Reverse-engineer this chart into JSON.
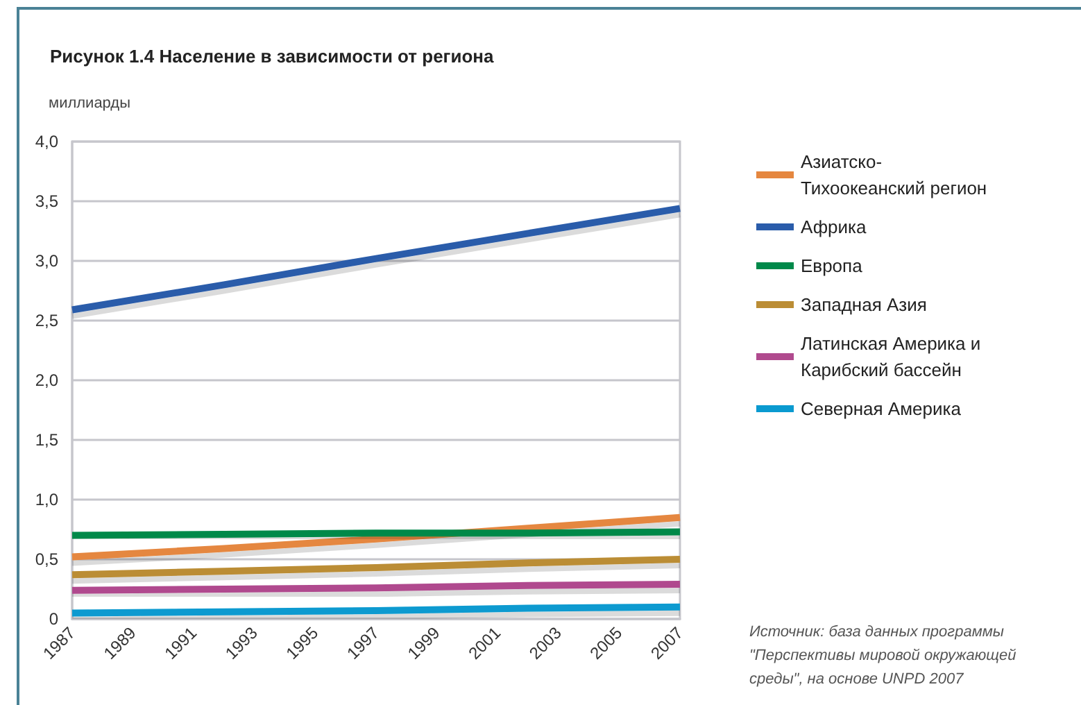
{
  "chart_data": {
    "type": "line",
    "title": "Рисунок 1.4 Население в зависимости от региона",
    "ylabel": "миллиарды",
    "x": [
      1987,
      1992,
      1997,
      2002,
      2007
    ],
    "series": [
      {
        "name": "Азиатско-Тихоокеанский регион",
        "color": "#e5873f",
        "values": [
          0.52,
          0.59,
          0.67,
          0.76,
          0.85
        ]
      },
      {
        "name": "Африка",
        "color": "#2a5caa",
        "values": [
          2.59,
          2.8,
          3.02,
          3.23,
          3.44
        ]
      },
      {
        "name": "Европа",
        "color": "#00894a",
        "values": [
          0.7,
          0.71,
          0.72,
          0.72,
          0.73
        ]
      },
      {
        "name": "Западная Азия",
        "color": "#bb8d35",
        "values": [
          0.37,
          0.4,
          0.43,
          0.47,
          0.5
        ]
      },
      {
        "name": "Латинская Америка и Карибский бассейн",
        "color": "#b04a8e",
        "values": [
          0.24,
          0.25,
          0.26,
          0.28,
          0.29
        ]
      },
      {
        "name": "Северная Америка",
        "color": "#0a9ad0",
        "values": [
          0.05,
          0.06,
          0.07,
          0.09,
          0.1
        ]
      }
    ],
    "xlim": [
      1987,
      2007
    ],
    "xticks": [
      1987,
      1989,
      1991,
      1993,
      1995,
      1997,
      1999,
      2001,
      2003,
      2005,
      2007
    ],
    "ylim": [
      0,
      4
    ],
    "yticks": [
      0,
      {
        "value": 0.5,
        "label": "0,5"
      },
      {
        "value": 1,
        "label": "1,0"
      },
      {
        "value": 1.5,
        "label": "1,5"
      },
      {
        "value": 2,
        "label": "2,0"
      },
      {
        "value": 2.5,
        "label": "2,5"
      },
      {
        "value": 3,
        "label": "3,0"
      },
      {
        "value": 3.5,
        "label": "3,5"
      },
      {
        "value": 4,
        "label": "4,0"
      }
    ],
    "grid": "y",
    "legend": "top right",
    "marker": "none",
    "annotations": [
      "Источник: база данных программы \"Перспективы мировой окружающей среды\", на основе UNPD 2007"
    ]
  }
}
